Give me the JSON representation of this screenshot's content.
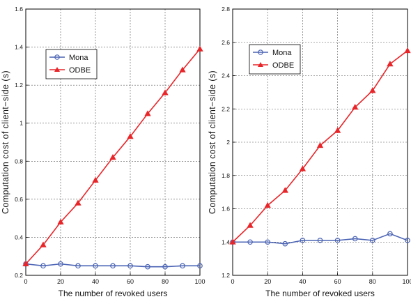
{
  "chart_data": [
    {
      "type": "line",
      "title": "",
      "xlabel": "The number of revoked users",
      "ylabel": "Computation cost of client−side (s)",
      "xlim": [
        0,
        100
      ],
      "ylim": [
        0.2,
        1.6
      ],
      "xticks": [
        "0",
        "20",
        "40",
        "60",
        "80",
        "100"
      ],
      "yticks": [
        "0.2",
        "0.4",
        "0.6",
        "0.8",
        "1",
        "1.2",
        "1.4",
        "1.6"
      ],
      "grid": true,
      "legend_position": "upper-left",
      "x": [
        0,
        10,
        20,
        30,
        40,
        50,
        60,
        70,
        80,
        90,
        100
      ],
      "series": [
        {
          "name": "Mona",
          "marker": "circle",
          "color": "#4a63b4",
          "values": [
            0.26,
            0.25,
            0.26,
            0.25,
            0.25,
            0.25,
            0.25,
            0.245,
            0.245,
            0.25,
            0.25
          ]
        },
        {
          "name": "ODBE",
          "marker": "triangle",
          "color": "#e8262a",
          "values": [
            0.26,
            0.36,
            0.48,
            0.58,
            0.7,
            0.82,
            0.93,
            1.05,
            1.16,
            1.28,
            1.39
          ]
        }
      ]
    },
    {
      "type": "line",
      "title": "",
      "xlabel": "The number of revoked users",
      "ylabel": "Computation cost of client−side (s)",
      "xlim": [
        0,
        100
      ],
      "ylim": [
        1.2,
        2.8
      ],
      "xticks": [
        "0",
        "20",
        "40",
        "60",
        "80",
        "100"
      ],
      "yticks": [
        "1.2",
        "1.4",
        "1.6",
        "1.8",
        "2",
        "2.2",
        "2.4",
        "2.6",
        "2.8"
      ],
      "grid": true,
      "legend_position": "upper-left",
      "x": [
        0,
        10,
        20,
        30,
        40,
        50,
        60,
        70,
        80,
        90,
        100
      ],
      "series": [
        {
          "name": "Mona",
          "marker": "circle",
          "color": "#4a63b4",
          "values": [
            1.4,
            1.4,
            1.4,
            1.39,
            1.41,
            1.41,
            1.41,
            1.42,
            1.41,
            1.45,
            1.41
          ]
        },
        {
          "name": "ODBE",
          "marker": "triangle",
          "color": "#e8262a",
          "values": [
            1.4,
            1.5,
            1.62,
            1.71,
            1.84,
            1.98,
            2.07,
            2.21,
            2.31,
            2.47,
            2.55
          ]
        }
      ]
    }
  ]
}
